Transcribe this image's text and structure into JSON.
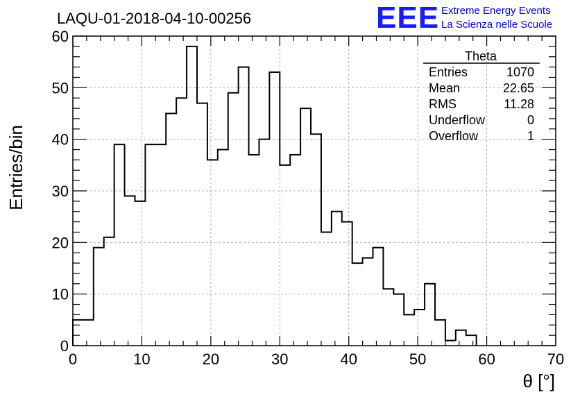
{
  "title": "LAQU-01-2018-04-10-00256",
  "logo": {
    "mark": "EEE",
    "line1": "Extreme Energy Events",
    "line2": "La Scienza nelle Scuole",
    "color": "#1a1aff"
  },
  "stats": {
    "header": "Theta",
    "rows": [
      {
        "label": "Entries",
        "value": "1070"
      },
      {
        "label": "Mean",
        "value": "22.65"
      },
      {
        "label": "RMS",
        "value": "11.28"
      },
      {
        "label": "Underflow",
        "value": "0"
      },
      {
        "label": "Overflow",
        "value": "1"
      }
    ]
  },
  "chart_data": {
    "type": "bar",
    "histogram": true,
    "xlabel": "θ [°]",
    "ylabel": "Entries/bin",
    "xlim": [
      0,
      70
    ],
    "ylim": [
      0,
      60
    ],
    "bin_width": 1.5,
    "bin_start": 0,
    "values": [
      5,
      5,
      19,
      21,
      39,
      29,
      28,
      39,
      39,
      45,
      48,
      58,
      47,
      36,
      38,
      49,
      54,
      37,
      40,
      53,
      35,
      37,
      46,
      41,
      22,
      26,
      24,
      16,
      17,
      19,
      11,
      10,
      6,
      7,
      12,
      5,
      1,
      3,
      2
    ],
    "x_ticks": [
      "0",
      "10",
      "20",
      "30",
      "40",
      "50",
      "60",
      "70"
    ],
    "y_ticks": [
      "0",
      "10",
      "20",
      "30",
      "40",
      "50",
      "60"
    ],
    "grid": true,
    "line_color": "#000000"
  }
}
